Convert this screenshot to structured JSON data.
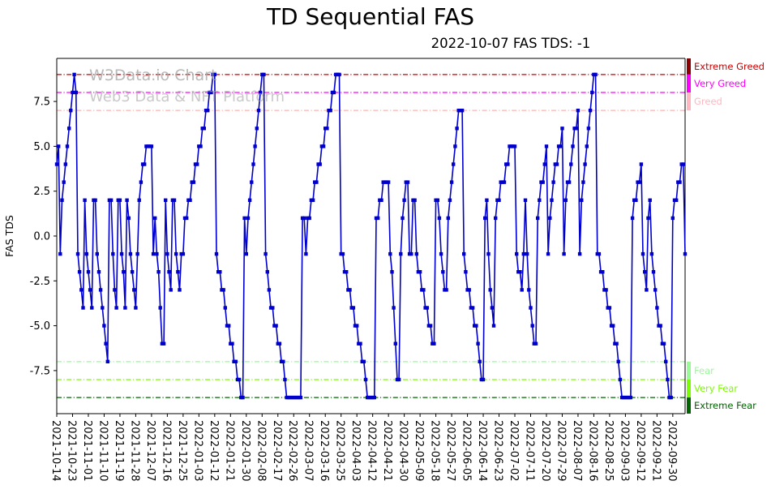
{
  "title": "TD Sequential FAS",
  "subtitle": "2022-10-07 FAS TDS: -1",
  "watermark": {
    "line1": "W3Data.io Chart",
    "line2": "Web3 Data & NFT Platform"
  },
  "chart_data": {
    "type": "line",
    "title": "TD Sequential FAS",
    "xlabel": "",
    "ylabel": "FAS TDS",
    "ylim": [
      -9.9,
      9.9
    ],
    "grid": false,
    "start_date": "2021-10-14",
    "end_date": "2022-10-07",
    "x_tick_every": 9,
    "x_tick_labels": [
      "2021-10-14",
      "2021-10-23",
      "2021-11-01",
      "2021-11-10",
      "2021-11-19",
      "2021-11-28",
      "2021-12-07",
      "2021-12-16",
      "2021-12-25",
      "2022-01-03",
      "2022-01-12",
      "2022-01-21",
      "2022-01-30",
      "2022-02-08",
      "2022-02-17",
      "2022-02-26",
      "2022-03-07",
      "2022-03-16",
      "2022-03-25",
      "2022-04-03",
      "2022-04-12",
      "2022-04-21",
      "2022-04-30",
      "2022-05-09",
      "2022-05-18",
      "2022-05-27",
      "2022-06-05",
      "2022-06-14",
      "2022-06-23",
      "2022-07-02",
      "2022-07-11",
      "2022-07-20",
      "2022-07-29",
      "2022-08-07",
      "2022-08-16",
      "2022-08-25",
      "2022-09-03",
      "2022-09-12",
      "2022-09-21",
      "2022-09-30"
    ],
    "y_ticks": [
      7.5,
      5.0,
      2.5,
      0.0,
      -2.5,
      -5.0,
      -7.5
    ],
    "y_tick_labels": [
      "7.5",
      "5.0",
      "2.5",
      "0.0",
      "-2.5",
      "-5.0",
      "-7.5"
    ],
    "levels": [
      {
        "label": "Extreme Greed",
        "line": 9,
        "zone": [
          9,
          9.9
        ],
        "line_color": "#cc0000",
        "bar_color": "#8b0000",
        "label_color": "#cc0000"
      },
      {
        "label": "Very Greed",
        "line": 8,
        "zone": [
          8,
          9
        ],
        "line_color": "#ff00ff",
        "bar_color": "#ff00ff",
        "label_color": "#ff00ff"
      },
      {
        "label": "Greed",
        "line": 7,
        "zone": [
          7,
          8
        ],
        "line_color": "#ffb0b0",
        "bar_color": "#ffb6c1",
        "label_color": "#ffb6c1"
      },
      {
        "label": "Fear",
        "line": -7,
        "zone": [
          -7,
          -8
        ],
        "line_color": "#98fb98",
        "bar_color": "#98fb98",
        "label_color": "#98fb98"
      },
      {
        "label": "Very Fear",
        "line": -8,
        "zone": [
          -8,
          -9
        ],
        "line_color": "#7cfc00",
        "bar_color": "#7cfc00",
        "label_color": "#7cfc00"
      },
      {
        "label": "Extreme Fear",
        "line": -9,
        "zone": [
          -9,
          -9.9
        ],
        "line_color": "#006400",
        "bar_color": "#006400",
        "label_color": "#006400"
      }
    ],
    "series": [
      {
        "name": "FAS TDS",
        "color": "#0000cd",
        "marker": "square",
        "values": [
          4,
          5,
          -1,
          2,
          3,
          4,
          5,
          6,
          7,
          8,
          9,
          8,
          -1,
          -2,
          -3,
          -4,
          2,
          -1,
          -2,
          -3,
          -4,
          2,
          2,
          -1,
          -2,
          -3,
          -4,
          -5,
          -6,
          -7,
          2,
          2,
          -1,
          -3,
          -4,
          2,
          2,
          -1,
          -2,
          -4,
          2,
          1,
          -1,
          -2,
          -3,
          -4,
          -1,
          2,
          3,
          4,
          4,
          5,
          5,
          5,
          5,
          -1,
          1,
          -1,
          -2,
          -4,
          -6,
          -6,
          2,
          -1,
          -2,
          -3,
          2,
          2,
          -1,
          -2,
          -3,
          -1,
          -1,
          1,
          1,
          2,
          2,
          3,
          3,
          4,
          4,
          5,
          5,
          6,
          6,
          7,
          7,
          8,
          8,
          9,
          9,
          -1,
          -2,
          -2,
          -3,
          -3,
          -4,
          -5,
          -5,
          -6,
          -6,
          -7,
          -7,
          -8,
          -8,
          -9,
          -9,
          1,
          -1,
          1,
          2,
          3,
          4,
          5,
          6,
          7,
          8,
          9,
          9,
          -1,
          -2,
          -3,
          -4,
          -4,
          -5,
          -5,
          -6,
          -6,
          -7,
          -7,
          -8,
          -9,
          -9,
          -9,
          -9,
          -9,
          -9,
          -9,
          -9,
          -9,
          1,
          1,
          -1,
          1,
          1,
          2,
          2,
          3,
          3,
          4,
          4,
          5,
          5,
          6,
          6,
          7,
          7,
          8,
          8,
          9,
          9,
          9,
          -1,
          -1,
          -2,
          -2,
          -3,
          -3,
          -4,
          -4,
          -5,
          -5,
          -6,
          -6,
          -7,
          -7,
          -8,
          -9,
          -9,
          -9,
          -9,
          -9,
          1,
          1,
          2,
          2,
          3,
          3,
          3,
          3,
          -1,
          -2,
          -4,
          -6,
          -8,
          -8,
          -1,
          1,
          2,
          3,
          3,
          -1,
          -1,
          2,
          2,
          -1,
          -2,
          -2,
          -3,
          -3,
          -4,
          -4,
          -5,
          -5,
          -6,
          -6,
          2,
          2,
          1,
          -1,
          -2,
          -3,
          -3,
          1,
          2,
          3,
          4,
          5,
          6,
          7,
          7,
          7,
          -1,
          -2,
          -3,
          -3,
          -4,
          -4,
          -5,
          -5,
          -6,
          -7,
          -8,
          -8,
          1,
          2,
          -1,
          -3,
          -4,
          -5,
          1,
          2,
          2,
          3,
          3,
          3,
          4,
          4,
          5,
          5,
          5,
          5,
          -1,
          -2,
          -2,
          -3,
          -1,
          2,
          -1,
          -3,
          -4,
          -5,
          -6,
          -6,
          1,
          2,
          3,
          3,
          4,
          5,
          -1,
          1,
          2,
          3,
          4,
          4,
          5,
          5,
          6,
          -1,
          2,
          3,
          3,
          4,
          5,
          6,
          6,
          7,
          -1,
          2,
          3,
          4,
          5,
          6,
          7,
          8,
          9,
          9,
          -1,
          -1,
          -2,
          -2,
          -3,
          -3,
          -4,
          -4,
          -5,
          -5,
          -6,
          -6,
          -7,
          -8,
          -9,
          -9,
          -9,
          -9,
          -9,
          -9,
          1,
          2,
          2,
          3,
          3,
          4,
          -1,
          -2,
          -3,
          1,
          2,
          -1,
          -2,
          -3,
          -4,
          -5,
          -5,
          -6,
          -6,
          -7,
          -8,
          -9,
          -9,
          1,
          2,
          2,
          3,
          3,
          4,
          4,
          -1
        ]
      }
    ]
  }
}
